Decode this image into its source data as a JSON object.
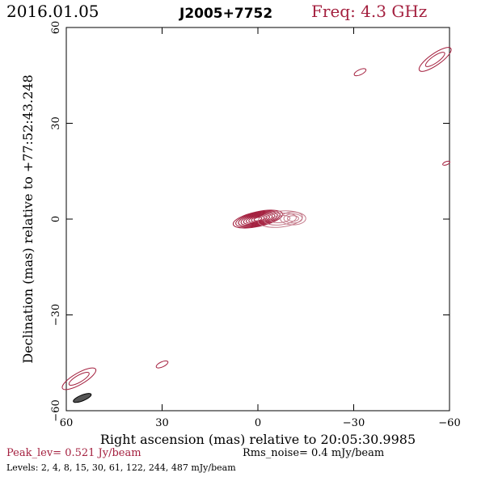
{
  "header": {
    "date": "2016.01.05",
    "source": "J2005+7752",
    "frequency": "Freq: 4.3 GHz"
  },
  "footer": {
    "peak": "Peak_lev=  0.521 Jy/beam",
    "noise": "Rms_noise=   0.4 mJy/beam",
    "levels": "Levels:   2,    4,    8,   15,   30,   61,  122,  244,  487 mJy/beam"
  },
  "colors": {
    "contour": "#a4203f",
    "contour_light": "#c47a8a",
    "beam_fill": "#555555"
  },
  "chart_data": {
    "type": "contour",
    "xlabel": "Right ascension (mas) relative to 20:05:30.9985",
    "ylabel": "Declination (mas) relative to +77:52:43.248",
    "xlim": [
      60,
      -60
    ],
    "ylim": [
      -60,
      60
    ],
    "x_ticks": [
      60,
      30,
      0,
      -30,
      -60
    ],
    "x_tick_labels": [
      "60",
      "30",
      "0",
      "−30",
      "−60"
    ],
    "y_ticks": [
      -60,
      -30,
      0,
      30,
      60
    ],
    "y_tick_labels": [
      "−60",
      "−30",
      "0",
      "30",
      "60"
    ],
    "contour_levels_mJy": [
      2,
      4,
      8,
      15,
      30,
      61,
      122,
      244,
      487
    ],
    "core": {
      "x": 0,
      "y": 0,
      "pa_deg": 12
    },
    "jet_components": [
      {
        "x": -7,
        "y": 0,
        "rx": 7,
        "ry": 2.5,
        "pa_deg": 6
      },
      {
        "x": -11,
        "y": 0.2,
        "rx": 4,
        "ry": 2,
        "pa_deg": 0
      }
    ],
    "isolated_features": [
      {
        "x": -55.5,
        "y": 50,
        "rx": 6,
        "ry": 1.8,
        "pa_deg": 35
      },
      {
        "x": -32,
        "y": 46,
        "rx": 2,
        "ry": 0.8,
        "pa_deg": 25
      },
      {
        "x": -59,
        "y": 17.5,
        "rx": 1.2,
        "ry": 0.5,
        "pa_deg": 20
      },
      {
        "x": 30,
        "y": -45.5,
        "rx": 2,
        "ry": 0.8,
        "pa_deg": 25
      },
      {
        "x": 56,
        "y": -50,
        "rx": 6,
        "ry": 1.8,
        "pa_deg": 30
      }
    ],
    "beam": {
      "x": 55,
      "y": -56,
      "major_mas": 6,
      "minor_mas": 1.8,
      "pa_deg": 22
    }
  }
}
